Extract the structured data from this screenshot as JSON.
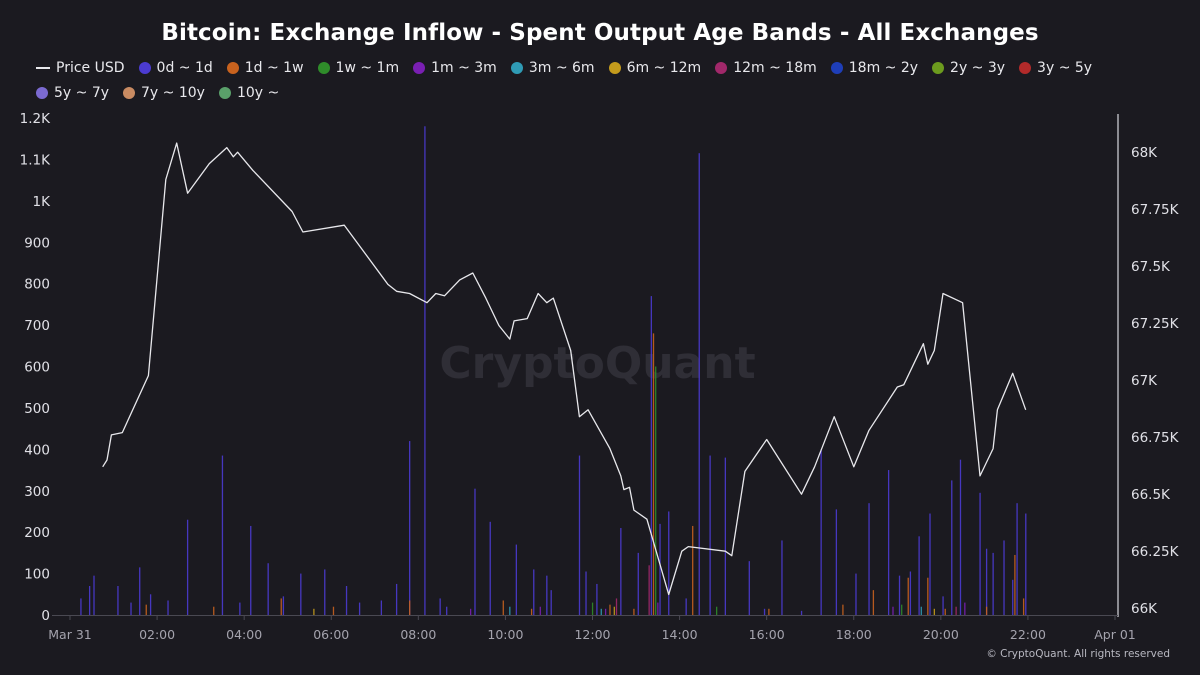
{
  "chart_data": {
    "type": "bar",
    "title": "Bitcoin: Exchange Inflow - Spent Output Age Bands - All Exchanges",
    "legend_position": "top",
    "watermark": "CryptoQuant",
    "copyright": "© CryptoQuant. All rights reserved",
    "x_axis": {
      "range_hours": [
        0,
        24
      ],
      "tick_labels": [
        "Mar 31",
        "02:00",
        "04:00",
        "06:00",
        "08:00",
        "10:00",
        "12:00",
        "14:00",
        "16:00",
        "18:00",
        "20:00",
        "22:00",
        "Apr 01"
      ],
      "tick_hours": [
        0,
        2,
        4,
        6,
        8,
        10,
        12,
        14,
        16,
        18,
        20,
        22,
        24
      ]
    },
    "y_left": {
      "range": [
        0,
        1200
      ],
      "ticks": [
        0,
        100,
        200,
        300,
        400,
        500,
        600,
        700,
        800,
        900,
        1000,
        1100,
        1200
      ],
      "tick_labels": [
        "0",
        "100",
        "200",
        "300",
        "400",
        "500",
        "600",
        "700",
        "800",
        "900",
        "1K",
        "1.1K",
        "1.2K"
      ]
    },
    "y_right": {
      "range": [
        65970,
        68150
      ],
      "ticks": [
        66000,
        66250,
        66500,
        66750,
        67000,
        67250,
        67500,
        67750,
        68000
      ],
      "tick_labels": [
        "66K",
        "66.25K",
        "66.5K",
        "66.75K",
        "67K",
        "67.25K",
        "67.5K",
        "67.75K",
        "68K"
      ]
    },
    "legend": [
      {
        "name": "Price USD",
        "color": "#e8e8ec",
        "kind": "line"
      },
      {
        "name": "0d ~ 1d",
        "color": "#4b3bd1",
        "kind": "dot"
      },
      {
        "name": "1d ~ 1w",
        "color": "#c8621e",
        "kind": "dot"
      },
      {
        "name": "1w ~ 1m",
        "color": "#2f8c2a",
        "kind": "dot"
      },
      {
        "name": "1m ~ 3m",
        "color": "#7a1fb3",
        "kind": "dot"
      },
      {
        "name": "3m ~ 6m",
        "color": "#2f9bb5",
        "kind": "dot"
      },
      {
        "name": "6m ~ 12m",
        "color": "#c49b1c",
        "kind": "dot"
      },
      {
        "name": "12m ~ 18m",
        "color": "#a1286a",
        "kind": "dot"
      },
      {
        "name": "18m ~ 2y",
        "color": "#1e3eb8",
        "kind": "dot"
      },
      {
        "name": "2y ~ 3y",
        "color": "#6c9b1e",
        "kind": "dot"
      },
      {
        "name": "3y ~ 5y",
        "color": "#b22a2a",
        "kind": "dot"
      },
      {
        "name": "5y ~ 7y",
        "color": "#7b6ad1",
        "kind": "dot"
      },
      {
        "name": "7y ~ 10y",
        "color": "#c98b62",
        "kind": "dot"
      },
      {
        "name": "10y ~",
        "color": "#5aa06a",
        "kind": "dot"
      }
    ],
    "price_series": {
      "name": "Price USD",
      "points": [
        [
          0.75,
          66620
        ],
        [
          0.85,
          66650
        ],
        [
          0.95,
          66760
        ],
        [
          1.2,
          66770
        ],
        [
          1.8,
          67020
        ],
        [
          2.2,
          67880
        ],
        [
          2.45,
          68040
        ],
        [
          2.7,
          67820
        ],
        [
          3.2,
          67950
        ],
        [
          3.6,
          68020
        ],
        [
          3.75,
          67980
        ],
        [
          3.85,
          68000
        ],
        [
          4.2,
          67920
        ],
        [
          5.1,
          67740
        ],
        [
          5.35,
          67650
        ],
        [
          6.3,
          67680
        ],
        [
          7.3,
          67420
        ],
        [
          7.5,
          67390
        ],
        [
          7.8,
          67380
        ],
        [
          8.2,
          67340
        ],
        [
          8.4,
          67380
        ],
        [
          8.6,
          67370
        ],
        [
          8.95,
          67440
        ],
        [
          9.25,
          67470
        ],
        [
          9.55,
          67360
        ],
        [
          9.85,
          67240
        ],
        [
          10.1,
          67180
        ],
        [
          10.2,
          67260
        ],
        [
          10.5,
          67270
        ],
        [
          10.75,
          67380
        ],
        [
          10.95,
          67340
        ],
        [
          11.1,
          67360
        ],
        [
          11.5,
          67130
        ],
        [
          11.7,
          66840
        ],
        [
          11.9,
          66870
        ],
        [
          12.4,
          66700
        ],
        [
          12.65,
          66580
        ],
        [
          12.72,
          66520
        ],
        [
          12.85,
          66530
        ],
        [
          12.95,
          66430
        ],
        [
          13.25,
          66390
        ],
        [
          13.75,
          66060
        ],
        [
          14.05,
          66250
        ],
        [
          14.2,
          66270
        ],
        [
          15.05,
          66250
        ],
        [
          15.2,
          66230
        ],
        [
          15.5,
          66600
        ],
        [
          16.0,
          66740
        ],
        [
          16.8,
          66500
        ],
        [
          17.1,
          66620
        ],
        [
          17.55,
          66840
        ],
        [
          18.0,
          66620
        ],
        [
          18.35,
          66780
        ],
        [
          19.0,
          66970
        ],
        [
          19.15,
          66980
        ],
        [
          19.6,
          67160
        ],
        [
          19.7,
          67070
        ],
        [
          19.85,
          67130
        ],
        [
          20.05,
          67380
        ],
        [
          20.5,
          67340
        ],
        [
          20.9,
          66580
        ],
        [
          21.2,
          66700
        ],
        [
          21.3,
          66870
        ],
        [
          21.65,
          67030
        ],
        [
          21.95,
          66870
        ]
      ]
    },
    "series": [
      {
        "name": "0d ~ 1d",
        "color": "#4b3bd1",
        "bars": [
          [
            0.25,
            40
          ],
          [
            0.45,
            70
          ],
          [
            0.55,
            95
          ],
          [
            1.1,
            70
          ],
          [
            1.4,
            30
          ],
          [
            1.6,
            115
          ],
          [
            1.85,
            50
          ],
          [
            2.25,
            35
          ],
          [
            2.7,
            230
          ],
          [
            3.5,
            385
          ],
          [
            3.9,
            30
          ],
          [
            4.15,
            215
          ],
          [
            4.55,
            125
          ],
          [
            4.9,
            45
          ],
          [
            5.3,
            100
          ],
          [
            5.85,
            110
          ],
          [
            6.35,
            70
          ],
          [
            6.65,
            30
          ],
          [
            7.15,
            35
          ],
          [
            7.5,
            75
          ],
          [
            7.8,
            420
          ],
          [
            8.15,
            1180
          ],
          [
            8.5,
            40
          ],
          [
            8.65,
            20
          ],
          [
            9.3,
            305
          ],
          [
            9.65,
            225
          ],
          [
            10.25,
            170
          ],
          [
            10.65,
            110
          ],
          [
            10.95,
            95
          ],
          [
            11.05,
            60
          ],
          [
            11.7,
            385
          ],
          [
            11.85,
            105
          ],
          [
            12.1,
            75
          ],
          [
            12.65,
            210
          ],
          [
            13.05,
            150
          ],
          [
            13.35,
            770
          ],
          [
            13.55,
            220
          ],
          [
            13.75,
            250
          ],
          [
            14.15,
            40
          ],
          [
            14.45,
            1115
          ],
          [
            14.7,
            385
          ],
          [
            15.05,
            380
          ],
          [
            15.6,
            130
          ],
          [
            15.95,
            15
          ],
          [
            16.35,
            180
          ],
          [
            16.8,
            10
          ],
          [
            17.25,
            400
          ],
          [
            17.6,
            255
          ],
          [
            18.05,
            100
          ],
          [
            18.35,
            270
          ],
          [
            18.8,
            350
          ],
          [
            19.05,
            95
          ],
          [
            19.3,
            105
          ],
          [
            19.5,
            190
          ],
          [
            19.75,
            245
          ],
          [
            20.05,
            45
          ],
          [
            20.25,
            325
          ],
          [
            20.45,
            375
          ],
          [
            20.9,
            295
          ],
          [
            21.05,
            160
          ],
          [
            21.2,
            150
          ],
          [
            21.45,
            180
          ],
          [
            21.65,
            85
          ],
          [
            21.75,
            270
          ],
          [
            21.95,
            245
          ]
        ]
      },
      {
        "name": "1d ~ 1w",
        "color": "#c8621e",
        "bars": [
          [
            1.75,
            25
          ],
          [
            3.3,
            20
          ],
          [
            4.85,
            40
          ],
          [
            6.05,
            20
          ],
          [
            7.8,
            35
          ],
          [
            9.95,
            35
          ],
          [
            10.6,
            15
          ],
          [
            12.4,
            25
          ],
          [
            12.95,
            15
          ],
          [
            13.4,
            680
          ],
          [
            14.3,
            215
          ],
          [
            16.05,
            15
          ],
          [
            17.75,
            25
          ],
          [
            18.45,
            60
          ],
          [
            19.25,
            90
          ],
          [
            19.7,
            90
          ],
          [
            20.1,
            15
          ],
          [
            21.05,
            20
          ],
          [
            21.7,
            145
          ],
          [
            21.9,
            40
          ]
        ]
      },
      {
        "name": "1w ~ 1m",
        "color": "#2f8c2a",
        "bars": [
          [
            12.0,
            30
          ],
          [
            13.45,
            600
          ],
          [
            14.85,
            20
          ],
          [
            19.1,
            25
          ]
        ]
      },
      {
        "name": "1m ~ 3m",
        "color": "#7a1fb3",
        "bars": [
          [
            9.2,
            15
          ],
          [
            10.8,
            20
          ],
          [
            12.3,
            15
          ],
          [
            13.5,
            30
          ],
          [
            18.9,
            20
          ],
          [
            20.55,
            30
          ]
        ]
      },
      {
        "name": "3m ~ 6m",
        "color": "#2f9bb5",
        "bars": [
          [
            10.1,
            20
          ],
          [
            12.2,
            15
          ],
          [
            19.55,
            20
          ]
        ]
      },
      {
        "name": "6m ~ 12m",
        "color": "#c49b1c",
        "bars": [
          [
            5.6,
            15
          ],
          [
            12.5,
            20
          ],
          [
            19.85,
            15
          ]
        ]
      },
      {
        "name": "12m ~ 18m",
        "color": "#a1286a",
        "bars": [
          [
            12.55,
            40
          ],
          [
            13.3,
            120
          ],
          [
            20.35,
            20
          ]
        ]
      }
    ]
  }
}
